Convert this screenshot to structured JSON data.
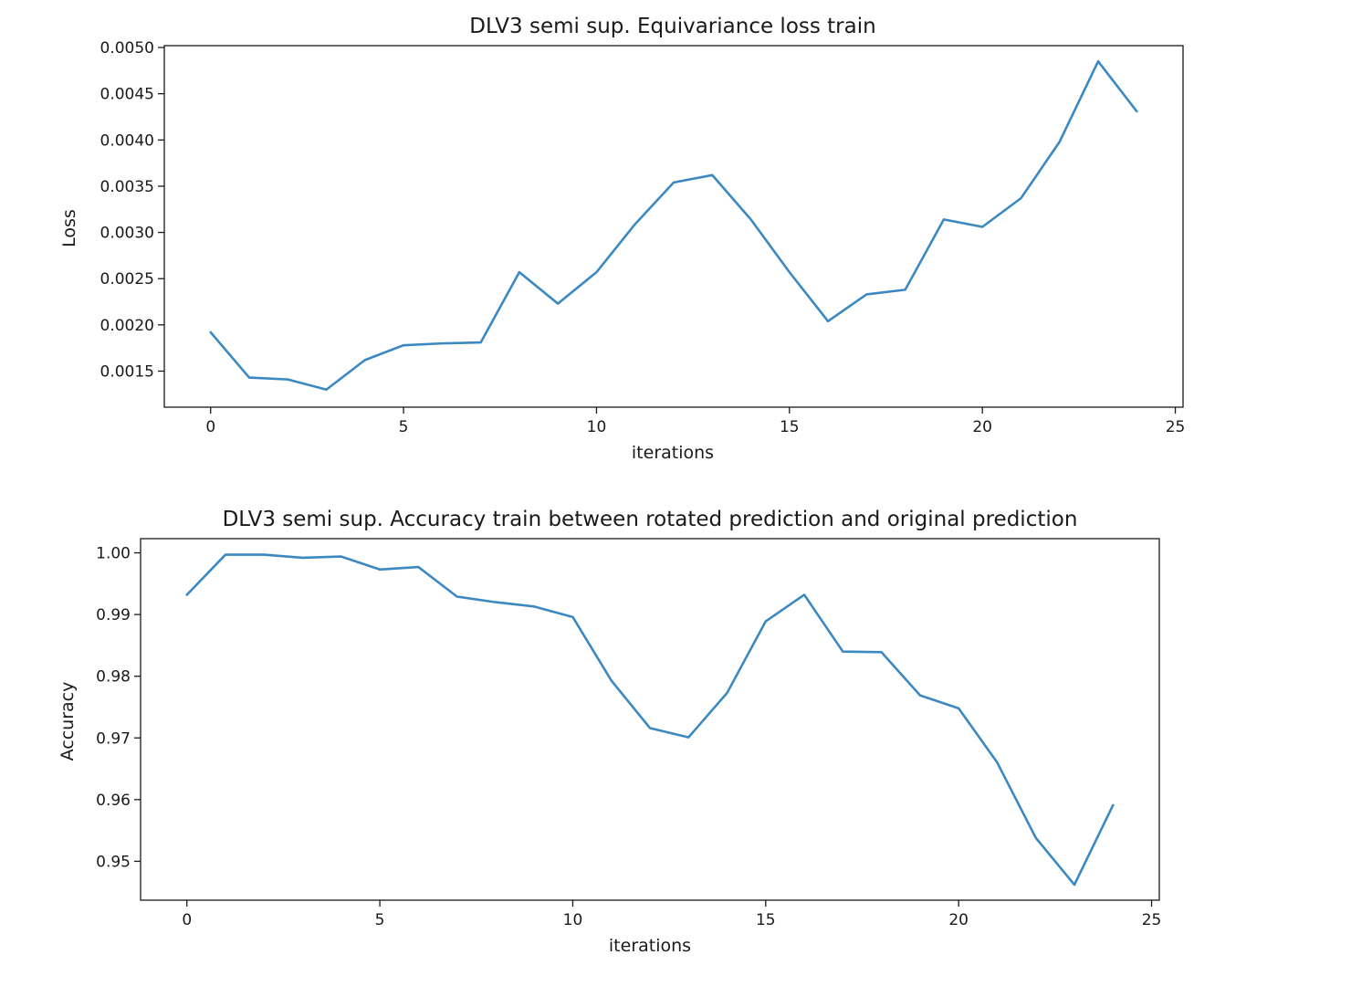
{
  "chart_data": [
    {
      "type": "line",
      "title": "DLV3 semi sup. Equivariance loss train",
      "xlabel": "iterations",
      "ylabel": "Loss",
      "xlim": [
        -1.2,
        25.2
      ],
      "ylim": [
        0.00111,
        0.00502
      ],
      "xticks": [
        0,
        5,
        10,
        15,
        20,
        25
      ],
      "xtick_labels": [
        "0",
        "5",
        "10",
        "15",
        "20",
        "25"
      ],
      "yticks": [
        0.0015,
        0.002,
        0.0025,
        0.003,
        0.0035,
        0.004,
        0.0045,
        0.005
      ],
      "ytick_labels": [
        "0.0015",
        "0.0020",
        "0.0025",
        "0.0030",
        "0.0035",
        "0.0040",
        "0.0045",
        "0.0050"
      ],
      "grid": false,
      "color": "#3c89c2",
      "series": [
        {
          "x": [
            0,
            1,
            2,
            3,
            4,
            5,
            6,
            7,
            8,
            9,
            10,
            11,
            12,
            13,
            14,
            15,
            16,
            17,
            18,
            19,
            20,
            21,
            22,
            23,
            24
          ],
          "values": [
            0.00192,
            0.00143,
            0.00141,
            0.0013,
            0.00162,
            0.00178,
            0.0018,
            0.00181,
            0.00257,
            0.00223,
            0.00257,
            0.00309,
            0.00354,
            0.00362,
            0.00314,
            0.00257,
            0.00204,
            0.00233,
            0.00238,
            0.00314,
            0.00306,
            0.00337,
            0.00398,
            0.00485,
            0.00431
          ]
        }
      ]
    },
    {
      "type": "line",
      "title": "DLV3 semi sup. Accuracy train between rotated prediction and original prediction",
      "xlabel": "iterations",
      "ylabel": "Accuracy",
      "xlim": [
        -1.2,
        25.2
      ],
      "ylim": [
        0.9437,
        1.0023
      ],
      "xticks": [
        0,
        5,
        10,
        15,
        20,
        25
      ],
      "xtick_labels": [
        "0",
        "5",
        "10",
        "15",
        "20",
        "25"
      ],
      "yticks": [
        0.95,
        0.96,
        0.97,
        0.98,
        0.99,
        1.0
      ],
      "ytick_labels": [
        "0.95",
        "0.96",
        "0.97",
        "0.98",
        "0.99",
        "1.00"
      ],
      "grid": false,
      "color": "#3c89c2",
      "series": [
        {
          "x": [
            0,
            1,
            2,
            3,
            4,
            5,
            6,
            7,
            8,
            9,
            10,
            11,
            12,
            13,
            14,
            15,
            16,
            17,
            18,
            19,
            20,
            21,
            22,
            23,
            24
          ],
          "values": [
            0.9932,
            0.9997,
            0.9997,
            0.9992,
            0.9994,
            0.9973,
            0.9977,
            0.9929,
            0.992,
            0.9913,
            0.9896,
            0.9793,
            0.9716,
            0.9701,
            0.9773,
            0.9889,
            0.9932,
            0.984,
            0.9839,
            0.9769,
            0.9748,
            0.966,
            0.9538,
            0.9462,
            0.9591
          ]
        }
      ]
    }
  ]
}
